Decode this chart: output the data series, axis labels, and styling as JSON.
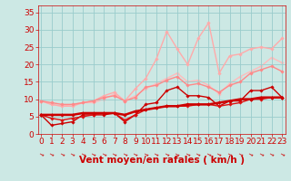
{
  "title": "",
  "xlabel": "Vent moyen/en rafales ( km/h )",
  "bg_color": "#cce8e4",
  "grid_color": "#99cccc",
  "x": [
    0,
    1,
    2,
    3,
    4,
    5,
    6,
    7,
    8,
    9,
    10,
    11,
    12,
    13,
    14,
    15,
    16,
    17,
    18,
    19,
    20,
    21,
    22,
    23
  ],
  "lines": [
    {
      "y": [
        5.5,
        5.5,
        5.5,
        5.5,
        6.0,
        6.0,
        6.0,
        6.0,
        5.5,
        6.5,
        7.0,
        7.5,
        8.0,
        8.0,
        8.5,
        8.5,
        8.5,
        9.0,
        9.5,
        10.0,
        10.0,
        10.5,
        10.5,
        10.5
      ],
      "color": "#cc0000",
      "lw": 1.8,
      "marker": "D",
      "ms": 1.8,
      "zorder": 6
    },
    {
      "y": [
        5.5,
        4.5,
        4.0,
        4.5,
        5.0,
        5.5,
        6.0,
        6.0,
        4.0,
        5.5,
        7.0,
        7.5,
        8.0,
        8.0,
        8.0,
        8.5,
        8.5,
        8.0,
        8.5,
        9.0,
        10.0,
        10.0,
        10.5,
        10.5
      ],
      "color": "#dd1111",
      "lw": 1.0,
      "marker": "D",
      "ms": 1.8,
      "zorder": 5
    },
    {
      "y": [
        5.5,
        2.5,
        3.0,
        3.5,
        5.5,
        5.5,
        5.5,
        6.0,
        3.5,
        5.5,
        8.5,
        9.0,
        12.5,
        13.5,
        11.0,
        11.0,
        10.5,
        8.0,
        9.5,
        9.5,
        12.5,
        12.5,
        13.5,
        10.5
      ],
      "color": "#cc0000",
      "lw": 1.0,
      "marker": "D",
      "ms": 1.8,
      "zorder": 4
    },
    {
      "y": [
        9.5,
        9.0,
        8.5,
        8.5,
        9.0,
        9.5,
        10.5,
        11.0,
        9.5,
        10.5,
        13.5,
        14.0,
        15.5,
        16.5,
        14.0,
        14.5,
        13.5,
        12.0,
        14.0,
        15.0,
        17.5,
        18.5,
        19.5,
        18.0
      ],
      "color": "#ff8888",
      "lw": 1.0,
      "marker": "D",
      "ms": 1.8,
      "zorder": 3
    },
    {
      "y": [
        9.5,
        8.5,
        8.0,
        8.0,
        9.0,
        9.5,
        11.0,
        12.0,
        9.5,
        13.0,
        16.0,
        21.5,
        29.5,
        24.5,
        20.0,
        27.5,
        32.0,
        17.5,
        22.5,
        23.0,
        24.5,
        25.0,
        24.5,
        27.5
      ],
      "color": "#ffaaaa",
      "lw": 1.0,
      "marker": "D",
      "ms": 1.8,
      "zorder": 2
    },
    {
      "y": [
        9.5,
        8.5,
        8.0,
        8.5,
        9.0,
        9.0,
        10.0,
        11.5,
        9.5,
        11.0,
        13.0,
        14.5,
        16.0,
        17.5,
        15.0,
        15.5,
        14.0,
        11.5,
        14.5,
        16.5,
        18.0,
        19.5,
        22.0,
        20.5
      ],
      "color": "#ffbbbb",
      "lw": 1.0,
      "marker": "D",
      "ms": 1.8,
      "zorder": 1
    }
  ],
  "xlim": [
    -0.3,
    23.3
  ],
  "ylim": [
    0,
    37
  ],
  "yticks": [
    0,
    5,
    10,
    15,
    20,
    25,
    30,
    35
  ],
  "xticks": [
    0,
    1,
    2,
    3,
    4,
    5,
    6,
    7,
    8,
    9,
    10,
    11,
    12,
    13,
    14,
    15,
    16,
    17,
    18,
    19,
    20,
    21,
    22,
    23
  ],
  "tick_color": "#cc0000",
  "label_color": "#cc0000",
  "xlabel_fontsize": 7.5,
  "tick_fontsize": 6.5
}
